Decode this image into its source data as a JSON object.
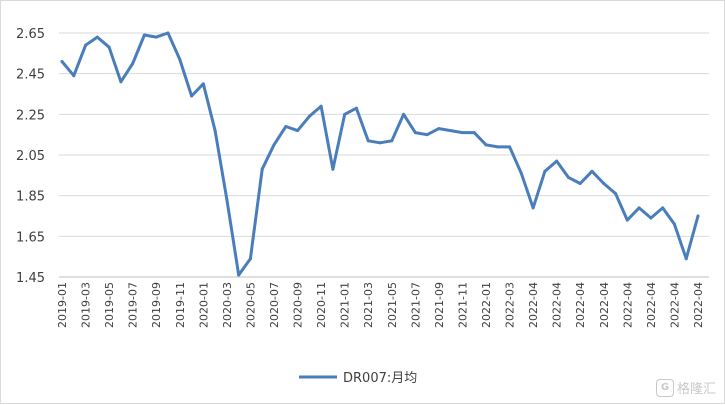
{
  "chart_data": {
    "type": "line",
    "title": "",
    "xlabel": "",
    "ylabel": "",
    "ylim": [
      1.45,
      2.65
    ],
    "yticks": [
      "1.45",
      "1.65",
      "1.85",
      "2.05",
      "2.25",
      "2.45",
      "2.65"
    ],
    "grid": "horizontal",
    "legend_position": "bottom",
    "line_color": "#4A7EBB",
    "x_tick_labels": [
      "2019-01",
      "2019-03",
      "2019-05",
      "2019-07",
      "2019-09",
      "2019-11",
      "2020-01",
      "2020-03",
      "2020-05",
      "2020-07",
      "2020-09",
      "2020-11",
      "2021-01",
      "2021-03",
      "2021-05",
      "2021-07",
      "2021-09",
      "2021-11",
      "2022-01",
      "2022-03",
      "2022-04",
      "2022-04",
      "2022-04",
      "2022-04",
      "2022-04",
      "2022-04",
      "2022-04",
      "2022-04"
    ],
    "series": [
      {
        "name": "DR007:月均",
        "values": [
          2.51,
          2.44,
          2.59,
          2.63,
          2.58,
          2.41,
          2.5,
          2.64,
          2.63,
          2.65,
          2.52,
          2.34,
          2.4,
          2.17,
          1.83,
          1.46,
          1.54,
          1.98,
          2.1,
          2.19,
          2.17,
          2.24,
          2.29,
          1.98,
          2.25,
          2.28,
          2.12,
          2.11,
          2.12,
          2.25,
          2.16,
          2.15,
          2.18,
          2.17,
          2.16,
          2.16,
          2.1,
          2.09,
          2.09,
          1.96,
          1.79,
          1.97,
          2.02,
          1.94,
          1.91,
          1.97,
          1.91,
          1.86,
          1.73,
          1.79,
          1.74,
          1.79,
          1.71,
          1.54,
          1.75
        ]
      }
    ]
  },
  "watermark": {
    "logo_glyph": "G",
    "text": "格隆汇"
  }
}
